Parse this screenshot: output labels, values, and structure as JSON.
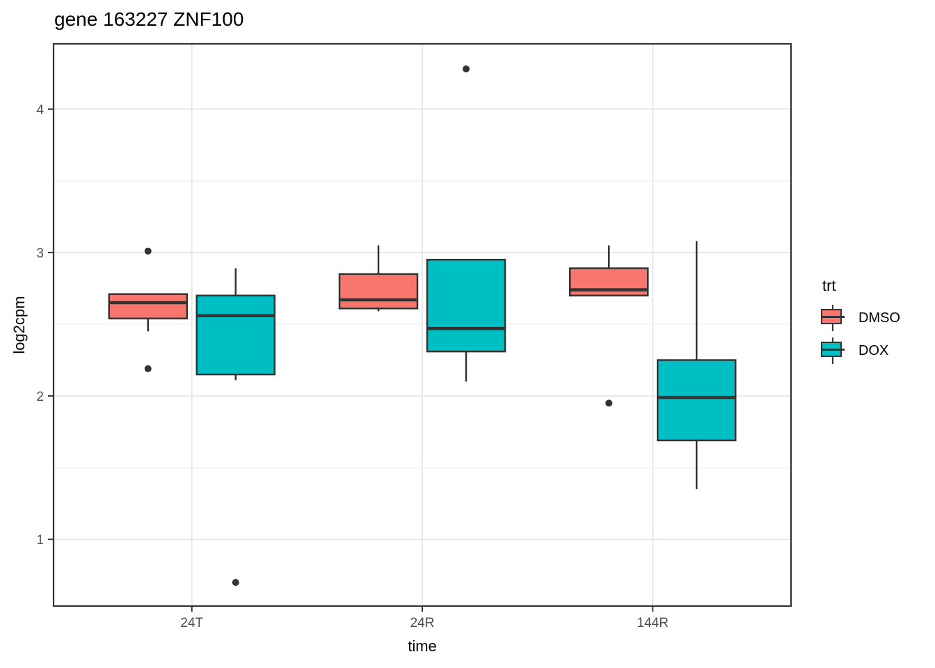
{
  "title": "gene 163227 ZNF100",
  "axes": {
    "x_label": "time",
    "y_label": "log2cpm"
  },
  "legend": {
    "title": "trt",
    "entries": [
      {
        "label": "DMSO",
        "color": "#F8766D"
      },
      {
        "label": "DOX",
        "color": "#00BFC4"
      }
    ]
  },
  "chart_data": {
    "type": "boxplot",
    "title": "gene 163227 ZNF100",
    "xlabel": "time",
    "ylabel": "log2cpm",
    "categories": [
      "24T",
      "24R",
      "144R"
    ],
    "ylim": [
      0.535,
      4.455
    ],
    "y_major_ticks": [
      4,
      3,
      2,
      1
    ],
    "y_minor_gridlines": [
      3.5,
      2.5,
      1.5
    ],
    "grid": true,
    "legend_position": "right",
    "legend_title": "trt",
    "series": [
      {
        "name": "DMSO",
        "fill": "#F8766D",
        "boxes": [
          {
            "category": "24T",
            "whisker_low": 2.45,
            "q1": 2.54,
            "median": 2.65,
            "q3": 2.71,
            "whisker_high": 2.71,
            "outliers": [
              3.01,
              2.19
            ]
          },
          {
            "category": "24R",
            "whisker_low": 2.59,
            "q1": 2.61,
            "median": 2.67,
            "q3": 2.85,
            "whisker_high": 3.05,
            "outliers": []
          },
          {
            "category": "144R",
            "whisker_low": 2.7,
            "q1": 2.7,
            "median": 2.74,
            "q3": 2.89,
            "whisker_high": 3.05,
            "outliers": [
              1.95
            ]
          }
        ]
      },
      {
        "name": "DOX",
        "fill": "#00BFC4",
        "boxes": [
          {
            "category": "24T",
            "whisker_low": 2.11,
            "q1": 2.15,
            "median": 2.56,
            "q3": 2.7,
            "whisker_high": 2.89,
            "outliers": [
              0.7
            ]
          },
          {
            "category": "24R",
            "whisker_low": 2.1,
            "q1": 2.31,
            "median": 2.47,
            "q3": 2.95,
            "whisker_high": 2.95,
            "outliers": [
              4.28
            ]
          },
          {
            "category": "144R",
            "whisker_low": 1.35,
            "q1": 1.69,
            "median": 1.99,
            "q3": 2.25,
            "whisker_high": 3.08,
            "outliers": []
          }
        ]
      }
    ],
    "style": {
      "box_stroke": "#333333",
      "outlier_color": "#333333",
      "grid_major": "#E8E8E8",
      "grid_minor": "#F0F0F0",
      "panel_border": "#333333",
      "panel_background": "#FFFFFF",
      "tick_label_color": "#4D4D4D"
    }
  }
}
